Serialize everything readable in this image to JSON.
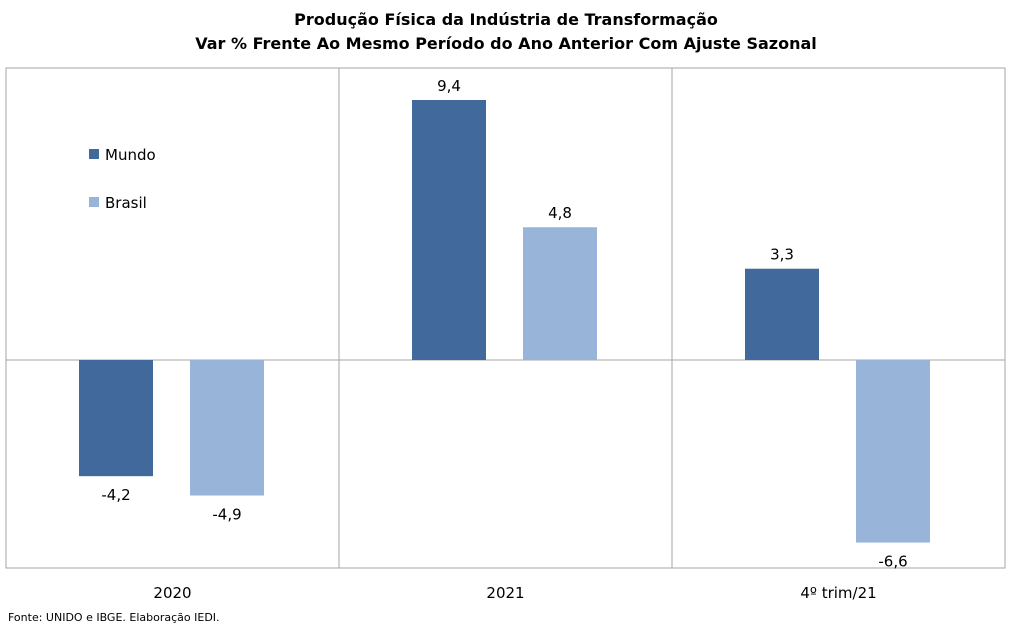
{
  "chart_data": {
    "type": "bar",
    "title": "Produção  Física da Indústria  de Transformação",
    "subtitle": "Var % Frente Ao Mesmo Período do Ano Anterior Com Ajuste Sazonal",
    "categories": [
      "2020",
      "2021",
      "4º trim/21"
    ],
    "series": [
      {
        "name": "Mundo",
        "color": "#41699c",
        "values": [
          -4.2,
          9.4,
          3.3
        ],
        "labels": [
          "-4,2",
          "9,4",
          "3,3"
        ]
      },
      {
        "name": "Brasil",
        "color": "#98b4d8",
        "values": [
          -4.9,
          4.8,
          -6.6
        ],
        "labels": [
          "-4,9",
          "4,8",
          "-6,6"
        ]
      }
    ],
    "ylim": [
      -7.6,
      10.5
    ],
    "xlabel": "",
    "ylabel": "",
    "grid": false,
    "legend_position": "top-left"
  },
  "source": "Fonte: UNIDO e IBGE. Elaboração IEDI."
}
